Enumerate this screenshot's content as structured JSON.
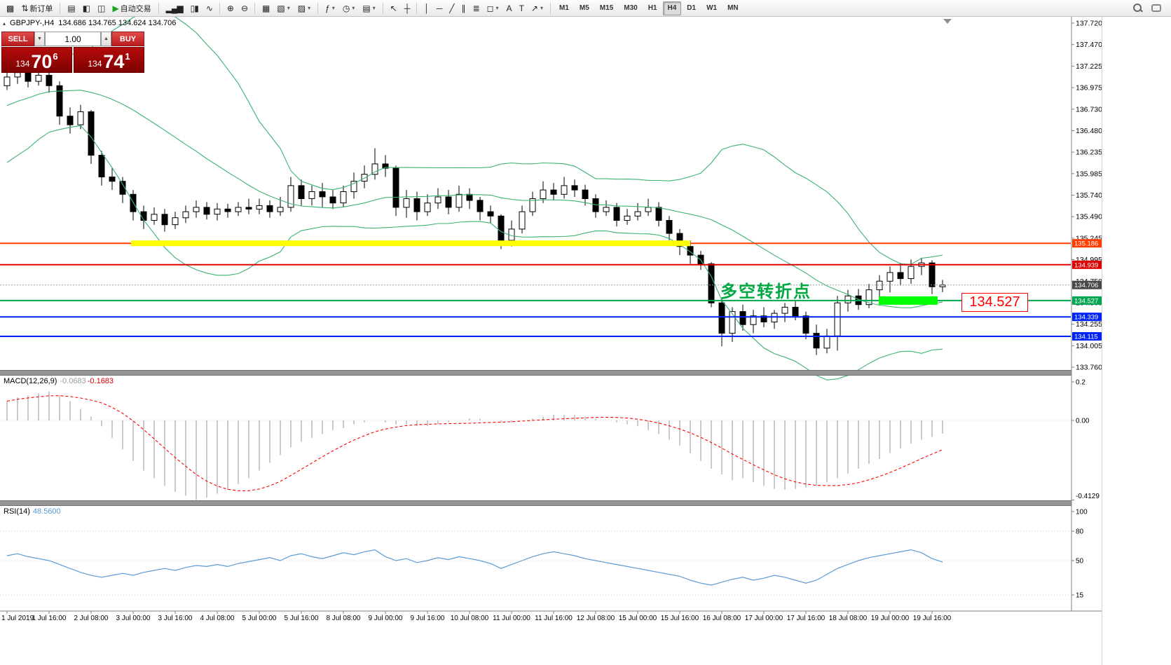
{
  "icons": {
    "spinner_up": "▲",
    "spinner_down": "▼",
    "symbol_marker": "▴",
    "caret": "▾"
  },
  "toolbar": {
    "items": [
      {
        "name": "app-icon",
        "glyph": "▩"
      },
      {
        "name": "new-order-button",
        "glyph": "⇅",
        "label": "新订单"
      },
      {
        "type": "sep"
      },
      {
        "name": "market-watch-button",
        "glyph": "▤"
      },
      {
        "name": "data-window-button",
        "glyph": "◧"
      },
      {
        "name": "navigator-button",
        "glyph": "◫"
      },
      {
        "name": "auto-trading-button",
        "glyph": "▶",
        "glyph_color": "#1ca51c",
        "label": "自动交易"
      },
      {
        "type": "sep"
      },
      {
        "name": "bar-chart-button",
        "glyph": "▂▄▆"
      },
      {
        "name": "candlestick-button",
        "glyph": "▯▮"
      },
      {
        "name": "line-chart-button",
        "glyph": "∿"
      },
      {
        "type": "sep"
      },
      {
        "name": "zoom-in-button",
        "glyph": "⊕"
      },
      {
        "name": "zoom-out-button",
        "glyph": "⊖"
      },
      {
        "type": "sep"
      },
      {
        "name": "tile-windows-button",
        "glyph": "▦"
      },
      {
        "name": "new-chart-button",
        "glyph": "▧",
        "caret": true
      },
      {
        "name": "profiles-button",
        "glyph": "▨",
        "caret": true
      },
      {
        "type": "sep"
      },
      {
        "name": "indicators-button",
        "glyph": "ƒ",
        "caret": true
      },
      {
        "name": "periods-button",
        "glyph": "◷",
        "caret": true
      },
      {
        "name": "templates-button",
        "glyph": "▤",
        "caret": true
      },
      {
        "type": "sep"
      },
      {
        "name": "cursor-button",
        "glyph": "↖"
      },
      {
        "name": "crosshair-button",
        "glyph": "┼"
      },
      {
        "type": "sep"
      },
      {
        "name": "vertical-line-button",
        "glyph": "│"
      },
      {
        "name": "horizontal-line-button",
        "glyph": "─"
      },
      {
        "name": "trendline-button",
        "glyph": "╱"
      },
      {
        "name": "channel-button",
        "glyph": "∥"
      },
      {
        "name": "fibonacci-button",
        "glyph": "≣"
      },
      {
        "name": "shapes-button",
        "glyph": "◻",
        "caret": true
      },
      {
        "name": "text-button",
        "glyph": "A"
      },
      {
        "name": "label-button",
        "glyph": "T"
      },
      {
        "name": "arrows-button",
        "glyph": "↗",
        "caret": true
      },
      {
        "type": "sep"
      }
    ],
    "timeframes": [
      "M1",
      "M5",
      "M15",
      "M30",
      "H1",
      "H4",
      "D1",
      "W1",
      "MN"
    ],
    "active_timeframe": "H4"
  },
  "chart": {
    "symbol": "GBPJPY-,H4",
    "ohlc": "134.686 134.765 134.624 134.706",
    "one_click": {
      "sell_label": "SELL",
      "buy_label": "BUY",
      "volume": "1.00",
      "sell_price": {
        "prefix": "134",
        "big": "70",
        "sup": "6"
      },
      "buy_price": {
        "prefix": "134",
        "big": "74",
        "sup": "1"
      }
    },
    "annotation": "多空转折点",
    "callout": "134.527",
    "price_axis": [
      "137.720",
      "137.470",
      "137.225",
      "136.975",
      "136.730",
      "136.480",
      "136.235",
      "135.985",
      "135.740",
      "135.490",
      "135.245",
      "134.995",
      "134.750",
      "134.500",
      "134.255",
      "134.005",
      "133.760"
    ],
    "levels": [
      {
        "price": "135.186",
        "value": 135.186,
        "color": "#ff3c00",
        "tag_bg": "#ff3c00",
        "lw": 2
      },
      {
        "price": "134.939",
        "value": 134.939,
        "color": "#dd0000",
        "tag_bg": "#dd0000",
        "lw": 2
      },
      {
        "price": "134.527",
        "value": 134.527,
        "color": "#00a651",
        "tag_bg": "#00a651",
        "lw": 2
      },
      {
        "price": "134.339",
        "value": 134.339,
        "color": "#0023f5",
        "tag_bg": "#0023f5",
        "lw": 2
      },
      {
        "price": "134.115",
        "value": 134.115,
        "color": "#0023f5",
        "tag_bg": "#0023f5",
        "lw": 2
      }
    ],
    "current_price": {
      "price": "134.706",
      "value": 134.706,
      "tag_bg": "#484848",
      "line_color": "#999999"
    },
    "highlights": [
      {
        "name": "resistance-zone-highlight",
        "value": 135.186,
        "i1": 11.8,
        "i2": 65,
        "thickness": 8,
        "color": "#ffff00"
      },
      {
        "name": "support-zone-highlight",
        "value": 134.527,
        "i1": 82.9,
        "i2": 88.5,
        "thickness": 12,
        "color": "#00ff00"
      }
    ]
  },
  "chart_data": {
    "type": "candlestick",
    "symbol": "GBPJPY-",
    "timeframe": "H4",
    "y_range": [
      133.76,
      137.72
    ],
    "candle_colors": {
      "up_fill": "#ffffff",
      "down_fill": "#000000",
      "outline": "#000000"
    },
    "bollinger": {
      "period": 20,
      "deviation": 2,
      "color": "#3cb371"
    },
    "warmup_closes": [
      136.2,
      136.3,
      136.25,
      136.4,
      136.5,
      136.45,
      136.6,
      136.7,
      136.65,
      136.8,
      136.9,
      136.85,
      137.0,
      137.05,
      137.0,
      137.1,
      137.2,
      137.15,
      137.25
    ],
    "candles": [
      [
        137.0,
        137.18,
        136.95,
        137.1
      ],
      [
        137.1,
        137.28,
        137.02,
        137.15
      ],
      [
        137.15,
        137.22,
        136.98,
        137.05
      ],
      [
        137.05,
        137.2,
        137.0,
        137.12
      ],
      [
        137.12,
        137.18,
        136.92,
        137.0
      ],
      [
        137.0,
        137.05,
        136.55,
        136.65
      ],
      [
        136.65,
        136.75,
        136.45,
        136.55
      ],
      [
        136.55,
        136.78,
        136.5,
        136.7
      ],
      [
        136.7,
        136.72,
        136.1,
        136.2
      ],
      [
        136.2,
        136.25,
        135.85,
        135.95
      ],
      [
        135.95,
        136.05,
        135.8,
        135.9
      ],
      [
        135.9,
        135.95,
        135.65,
        135.75
      ],
      [
        135.75,
        135.8,
        135.45,
        135.55
      ],
      [
        135.55,
        135.62,
        135.35,
        135.45
      ],
      [
        135.45,
        135.6,
        135.4,
        135.52
      ],
      [
        135.52,
        135.58,
        135.32,
        135.4
      ],
      [
        135.4,
        135.55,
        135.35,
        135.48
      ],
      [
        135.48,
        135.62,
        135.42,
        135.55
      ],
      [
        135.55,
        135.68,
        135.48,
        135.6
      ],
      [
        135.6,
        135.66,
        135.46,
        135.52
      ],
      [
        135.52,
        135.65,
        135.45,
        135.58
      ],
      [
        135.58,
        135.64,
        135.48,
        135.55
      ],
      [
        135.55,
        135.66,
        135.5,
        135.6
      ],
      [
        135.6,
        135.7,
        135.52,
        135.58
      ],
      [
        135.58,
        135.7,
        135.52,
        135.62
      ],
      [
        135.62,
        135.68,
        135.48,
        135.55
      ],
      [
        135.55,
        135.72,
        135.5,
        135.6
      ],
      [
        135.6,
        135.95,
        135.55,
        135.85
      ],
      [
        135.85,
        135.92,
        135.62,
        135.7
      ],
      [
        135.7,
        135.85,
        135.62,
        135.78
      ],
      [
        135.78,
        135.88,
        135.6,
        135.72
      ],
      [
        135.72,
        135.8,
        135.58,
        135.65
      ],
      [
        135.65,
        135.85,
        135.6,
        135.78
      ],
      [
        135.78,
        136.0,
        135.7,
        135.9
      ],
      [
        135.9,
        136.08,
        135.82,
        135.98
      ],
      [
        135.98,
        136.28,
        135.92,
        136.1
      ],
      [
        136.1,
        136.2,
        135.95,
        136.05
      ],
      [
        136.05,
        136.08,
        135.5,
        135.6
      ],
      [
        135.6,
        135.8,
        135.48,
        135.7
      ],
      [
        135.7,
        135.78,
        135.45,
        135.55
      ],
      [
        135.55,
        135.75,
        135.5,
        135.65
      ],
      [
        135.65,
        135.82,
        135.58,
        135.72
      ],
      [
        135.72,
        135.8,
        135.52,
        135.6
      ],
      [
        135.6,
        135.85,
        135.55,
        135.75
      ],
      [
        135.75,
        135.82,
        135.58,
        135.68
      ],
      [
        135.68,
        135.72,
        135.45,
        135.55
      ],
      [
        135.55,
        135.62,
        135.42,
        135.5
      ],
      [
        135.5,
        135.52,
        135.12,
        135.22
      ],
      [
        135.22,
        135.45,
        135.15,
        135.35
      ],
      [
        135.35,
        135.62,
        135.3,
        135.55
      ],
      [
        135.55,
        135.78,
        135.5,
        135.7
      ],
      [
        135.7,
        135.9,
        135.65,
        135.8
      ],
      [
        135.8,
        135.88,
        135.68,
        135.75
      ],
      [
        135.75,
        135.95,
        135.7,
        135.85
      ],
      [
        135.85,
        135.92,
        135.72,
        135.8
      ],
      [
        135.8,
        135.86,
        135.62,
        135.7
      ],
      [
        135.7,
        135.75,
        135.48,
        135.55
      ],
      [
        135.55,
        135.68,
        135.5,
        135.6
      ],
      [
        135.6,
        135.65,
        135.38,
        135.45
      ],
      [
        135.45,
        135.58,
        135.4,
        135.5
      ],
      [
        135.5,
        135.65,
        135.45,
        135.55
      ],
      [
        135.55,
        135.7,
        135.5,
        135.6
      ],
      [
        135.6,
        135.66,
        135.38,
        135.45
      ],
      [
        135.45,
        135.5,
        135.22,
        135.3
      ],
      [
        135.3,
        135.35,
        135.05,
        135.15
      ],
      [
        135.15,
        135.22,
        134.95,
        135.05
      ],
      [
        135.05,
        135.1,
        134.88,
        134.95
      ],
      [
        134.95,
        134.97,
        134.45,
        134.5
      ],
      [
        134.5,
        134.55,
        134.0,
        134.15
      ],
      [
        134.15,
        134.45,
        134.05,
        134.4
      ],
      [
        134.4,
        134.48,
        134.18,
        134.25
      ],
      [
        134.25,
        134.42,
        134.15,
        134.35
      ],
      [
        134.35,
        134.45,
        134.22,
        134.28
      ],
      [
        134.28,
        134.42,
        134.2,
        134.38
      ],
      [
        134.38,
        134.5,
        134.28,
        134.45
      ],
      [
        134.45,
        134.52,
        134.3,
        134.35
      ],
      [
        134.35,
        134.4,
        134.08,
        134.15
      ],
      [
        134.15,
        134.25,
        133.9,
        133.98
      ],
      [
        133.98,
        134.2,
        133.92,
        134.12
      ],
      [
        134.12,
        134.58,
        133.95,
        134.5
      ],
      [
        134.5,
        134.65,
        134.4,
        134.58
      ],
      [
        134.58,
        134.66,
        134.42,
        134.48
      ],
      [
        134.48,
        134.72,
        134.44,
        134.65
      ],
      [
        134.65,
        134.82,
        134.55,
        134.75
      ],
      [
        134.75,
        134.92,
        134.62,
        134.85
      ],
      [
        134.85,
        134.96,
        134.7,
        134.78
      ],
      [
        134.78,
        135.0,
        134.72,
        134.92
      ],
      [
        134.92,
        135.02,
        134.82,
        134.96
      ],
      [
        134.96,
        134.99,
        134.6,
        134.686
      ],
      [
        134.686,
        134.765,
        134.624,
        134.706
      ]
    ],
    "time_labels": [
      {
        "i": 0,
        "t": "1 Jul 2019"
      },
      {
        "i": 4,
        "t": "1 Jul 16:00"
      },
      {
        "i": 8,
        "t": "2 Jul 08:00"
      },
      {
        "i": 12,
        "t": "3 Jul 00:00"
      },
      {
        "i": 16,
        "t": "3 Jul 16:00"
      },
      {
        "i": 20,
        "t": "4 Jul 08:00"
      },
      {
        "i": 24,
        "t": "5 Jul 00:00"
      },
      {
        "i": 28,
        "t": "5 Jul 16:00"
      },
      {
        "i": 32,
        "t": "8 Jul 08:00"
      },
      {
        "i": 36,
        "t": "9 Jul 00:00"
      },
      {
        "i": 40,
        "t": "9 Jul 16:00"
      },
      {
        "i": 44,
        "t": "10 Jul 08:00"
      },
      {
        "i": 48,
        "t": "11 Jul 00:00"
      },
      {
        "i": 52,
        "t": "11 Jul 16:00"
      },
      {
        "i": 56,
        "t": "12 Jul 08:00"
      },
      {
        "i": 60,
        "t": "15 Jul 00:00"
      },
      {
        "i": 64,
        "t": "15 Jul 16:00"
      },
      {
        "i": 68,
        "t": "16 Jul 08:00"
      },
      {
        "i": 72,
        "t": "17 Jul 00:00"
      },
      {
        "i": 76,
        "t": "17 Jul 16:00"
      },
      {
        "i": 80,
        "t": "18 Jul 08:00"
      },
      {
        "i": 84,
        "t": "19 Jul 00:00"
      },
      {
        "i": 88,
        "t": "19 Jul 16:00"
      }
    ],
    "macd": {
      "label": "MACD(12,26,9)",
      "main_value": "-0.0683",
      "signal_value": "-0.1683",
      "signal_period": 9,
      "histogram_color": "#b4b4b4",
      "signal_color": "#ff0000",
      "axis": {
        "top_label": "0.2",
        "top_value": 0.2,
        "zero_label": "0.00",
        "min_label": "-0.4129",
        "min_value": -0.4129
      },
      "histogram": [
        0.1,
        0.12,
        0.13,
        0.14,
        0.15,
        0.13,
        0.1,
        0.06,
        0.02,
        -0.03,
        -0.09,
        -0.15,
        -0.21,
        -0.26,
        -0.3,
        -0.34,
        -0.37,
        -0.39,
        -0.4129,
        -0.4,
        -0.38,
        -0.36,
        -0.33,
        -0.3,
        -0.26,
        -0.22,
        -0.18,
        -0.14,
        -0.11,
        -0.09,
        -0.07,
        -0.05,
        -0.04,
        -0.02,
        -0.01,
        0.0,
        -0.01,
        -0.02,
        -0.02,
        -0.03,
        -0.03,
        -0.02,
        -0.01,
        0.0,
        0.01,
        0.01,
        0.0,
        -0.01,
        -0.01,
        0.0,
        0.01,
        0.02,
        0.03,
        0.03,
        0.03,
        0.02,
        0.01,
        0.0,
        -0.01,
        -0.02,
        -0.03,
        -0.05,
        -0.07,
        -0.1,
        -0.13,
        -0.17,
        -0.21,
        -0.25,
        -0.28,
        -0.31,
        -0.3,
        -0.32,
        -0.34,
        -0.355,
        -0.36,
        -0.355,
        -0.35,
        -0.34,
        -0.32,
        -0.3,
        -0.275,
        -0.25,
        -0.225,
        -0.2,
        -0.17,
        -0.145,
        -0.12,
        -0.1,
        -0.085,
        -0.0683
      ]
    },
    "rsi": {
      "label": "RSI(14)",
      "value": "48.5600",
      "color": "#5b9bd5",
      "levels": [
        80,
        50,
        15
      ],
      "axis_labels": [
        "100",
        "80",
        "50",
        "15"
      ],
      "series": [
        55,
        57,
        54,
        52,
        50,
        46,
        42,
        38,
        35,
        33,
        35,
        37,
        35,
        38,
        40,
        42,
        40,
        43,
        45,
        44,
        46,
        44,
        47,
        49,
        51,
        53,
        50,
        55,
        57,
        54,
        52,
        55,
        58,
        56,
        59,
        61,
        54,
        50,
        52,
        48,
        50,
        53,
        51,
        54,
        52,
        50,
        47,
        42,
        46,
        50,
        54,
        57,
        59,
        57,
        55,
        52,
        50,
        48,
        46,
        44,
        42,
        40,
        38,
        36,
        34,
        30,
        27,
        25,
        28,
        31,
        33,
        30,
        32,
        35,
        33,
        30,
        27,
        30,
        36,
        42,
        46,
        50,
        53,
        55,
        57,
        59,
        61,
        58,
        52,
        48.56
      ]
    }
  }
}
